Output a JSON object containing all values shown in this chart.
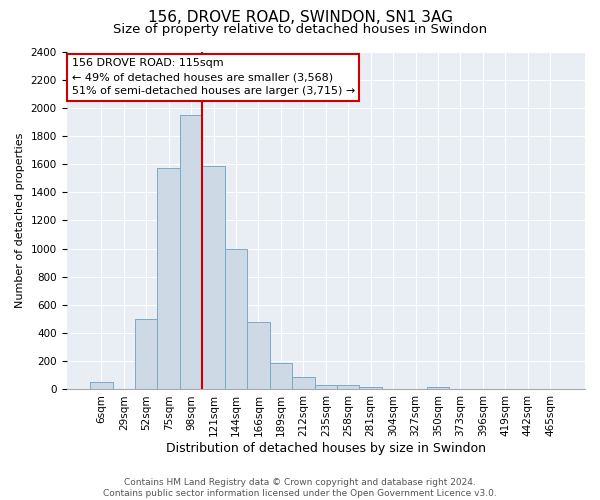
{
  "title": "156, DROVE ROAD, SWINDON, SN1 3AG",
  "subtitle": "Size of property relative to detached houses in Swindon",
  "xlabel": "Distribution of detached houses by size in Swindon",
  "ylabel": "Number of detached properties",
  "footnote1": "Contains HM Land Registry data © Crown copyright and database right 2024.",
  "footnote2": "Contains public sector information licensed under the Open Government Licence v3.0.",
  "bar_labels": [
    "6sqm",
    "29sqm",
    "52sqm",
    "75sqm",
    "98sqm",
    "121sqm",
    "144sqm",
    "166sqm",
    "189sqm",
    "212sqm",
    "235sqm",
    "258sqm",
    "281sqm",
    "304sqm",
    "327sqm",
    "350sqm",
    "373sqm",
    "396sqm",
    "419sqm",
    "442sqm",
    "465sqm"
  ],
  "bar_values": [
    50,
    0,
    500,
    1575,
    1950,
    1590,
    1000,
    480,
    185,
    90,
    30,
    30,
    20,
    0,
    0,
    20,
    0,
    0,
    0,
    0,
    0
  ],
  "bar_color": "#cdd9e5",
  "bar_edge_color": "#7aaac8",
  "vline_color": "#cc0000",
  "vline_bar_index": 5,
  "annotation_title": "156 DROVE ROAD: 115sqm",
  "annotation_line1": "← 49% of detached houses are smaller (3,568)",
  "annotation_line2": "51% of semi-detached houses are larger (3,715) →",
  "box_edge_color": "#cc0000",
  "plot_bg_color": "#e8eef4",
  "ylim": [
    0,
    2400
  ],
  "yticks": [
    0,
    200,
    400,
    600,
    800,
    1000,
    1200,
    1400,
    1600,
    1800,
    2000,
    2200,
    2400
  ],
  "title_fontsize": 11,
  "subtitle_fontsize": 9.5,
  "xlabel_fontsize": 9,
  "ylabel_fontsize": 8,
  "tick_fontsize": 7.5,
  "annotation_fontsize": 8,
  "footnote_fontsize": 6.5
}
